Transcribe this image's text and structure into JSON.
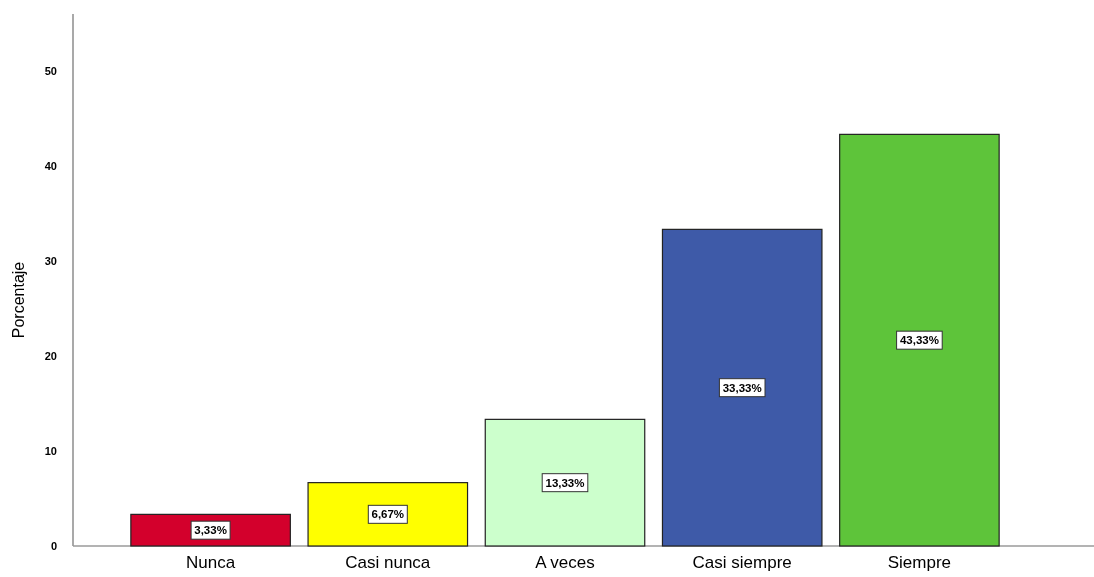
{
  "chart_data": {
    "type": "bar",
    "ylabel": "Porcentaje",
    "categories": [
      "Nunca",
      "Casi nunca",
      "A veces",
      "Casi siempre",
      "Siempre"
    ],
    "values": [
      3.33,
      6.67,
      13.33,
      33.33,
      43.33
    ],
    "colors": [
      "#d3002c",
      "#ffff00",
      "#ccffcc",
      "#3e5aa8",
      "#5ec43a"
    ],
    "value_labels": [
      "3,33%",
      "6,67%",
      "13,33%",
      "33,33%",
      "43,33%"
    ],
    "ylim": [
      0,
      56
    ],
    "yticks": [
      0,
      10,
      20,
      30,
      40,
      50
    ]
  }
}
